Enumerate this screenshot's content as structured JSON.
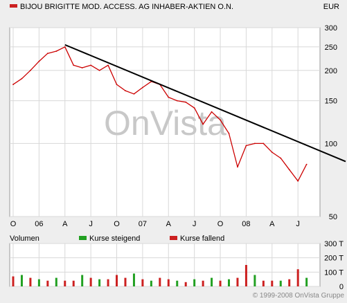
{
  "chart_data": [
    {
      "type": "line",
      "title": "BIJOU BRIGITTE MOD. ACCESS. AG INHABER-AKTIEN O.N.",
      "currency": "EUR",
      "y_scale": "log",
      "ylim": [
        50,
        300
      ],
      "y_ticks": [
        300,
        250,
        200,
        150,
        100,
        50
      ],
      "x_tick_labels": [
        "O",
        "06",
        "A",
        "J",
        "O",
        "07",
        "A",
        "J",
        "O",
        "08",
        "A",
        "J"
      ],
      "x": [
        "2005-10",
        "2005-11",
        "2005-12",
        "2006-01",
        "2006-02",
        "2006-03",
        "2006-04",
        "2006-05",
        "2006-06",
        "2006-07",
        "2006-08",
        "2006-09",
        "2006-10",
        "2006-11",
        "2006-12",
        "2007-01",
        "2007-02",
        "2007-03",
        "2007-04",
        "2007-05",
        "2007-06",
        "2007-07",
        "2007-08",
        "2007-09",
        "2007-10",
        "2007-11",
        "2007-12",
        "2008-01",
        "2008-02",
        "2008-03",
        "2008-04",
        "2008-05",
        "2008-06",
        "2008-07",
        "2008-08"
      ],
      "series": [
        {
          "color": "#cc0000",
          "values": [
            175,
            185,
            200,
            218,
            235,
            240,
            250,
            210,
            205,
            210,
            200,
            210,
            175,
            165,
            160,
            170,
            180,
            175,
            155,
            150,
            148,
            140,
            120,
            135,
            125,
            110,
            80,
            98,
            100,
            100,
            92,
            87,
            78,
            70,
            82
          ]
        }
      ],
      "trendline": {
        "x": [
          "2006-04",
          "2008-09"
        ],
        "y": [
          255,
          95
        ],
        "color": "#000000"
      },
      "watermark": "OnVista"
    },
    {
      "type": "bar",
      "title": "Volumen",
      "legend": [
        {
          "name": "Kurse steigend",
          "color": "#22a022"
        },
        {
          "name": "Kurse fallend",
          "color": "#cc2020"
        }
      ],
      "y_ticks": [
        "300 T",
        "200 T",
        "100 T",
        "0"
      ],
      "ylim": [
        0,
        300
      ],
      "unit": "T",
      "x": [
        "2005-10",
        "2005-11",
        "2005-12",
        "2006-01",
        "2006-02",
        "2006-03",
        "2006-04",
        "2006-05",
        "2006-06",
        "2006-07",
        "2006-08",
        "2006-09",
        "2006-10",
        "2006-11",
        "2006-12",
        "2007-01",
        "2007-02",
        "2007-03",
        "2007-04",
        "2007-05",
        "2007-06",
        "2007-07",
        "2007-08",
        "2007-09",
        "2007-10",
        "2007-11",
        "2007-12",
        "2008-01",
        "2008-02",
        "2008-03",
        "2008-04",
        "2008-05",
        "2008-06",
        "2008-07",
        "2008-08"
      ],
      "values": [
        70,
        80,
        60,
        50,
        40,
        60,
        40,
        40,
        80,
        60,
        50,
        50,
        80,
        60,
        90,
        50,
        40,
        60,
        50,
        40,
        30,
        50,
        40,
        60,
        40,
        50,
        60,
        150,
        80,
        40,
        40,
        40,
        50,
        120,
        60
      ],
      "direction": [
        "d",
        "u",
        "d",
        "u",
        "d",
        "u",
        "d",
        "d",
        "u",
        "d",
        "u",
        "d",
        "d",
        "d",
        "u",
        "d",
        "u",
        "d",
        "d",
        "u",
        "d",
        "u",
        "d",
        "u",
        "d",
        "u",
        "d",
        "d",
        "u",
        "d",
        "d",
        "u",
        "d",
        "d",
        "u"
      ]
    }
  ],
  "footer": {
    "copyright": "© 1999-2008 OnVista Gruppe"
  }
}
